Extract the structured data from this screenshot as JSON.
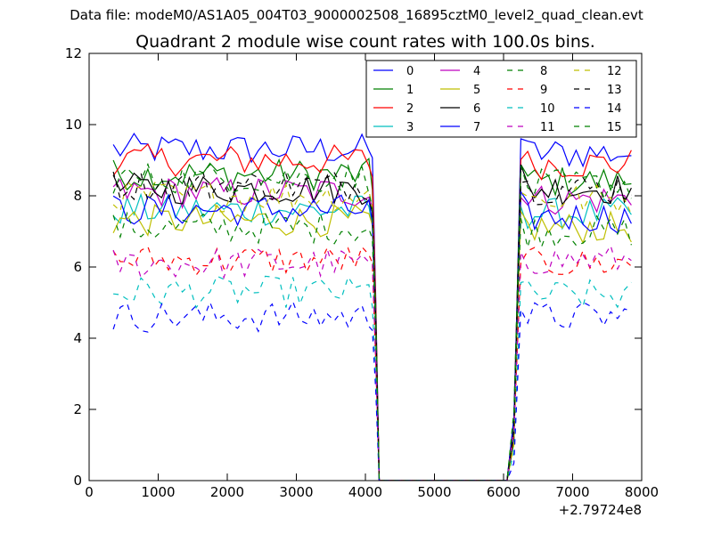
{
  "header": {
    "data_file": "Data file: modeM0/AS1A05_004T03_9000002508_16895cztM0_level2_quad_clean.evt",
    "title": "Quadrant 2 module wise count rates with 100.0s bins."
  },
  "chart_data": {
    "type": "line",
    "title": "Quadrant 2 module wise count rates with 100.0s bins.",
    "subtitle": "Data file: modeM0/AS1A05_004T03_9000002508_16895cztM0_level2_quad_clean.evt",
    "xlabel": "",
    "ylabel": "",
    "x_offset_label": "+2.79724e8",
    "xlim": [
      0,
      8000
    ],
    "ylim": [
      0,
      12
    ],
    "xticks": [
      0,
      1000,
      2000,
      3000,
      4000,
      5000,
      6000,
      7000,
      8000
    ],
    "yticks": [
      0,
      2,
      4,
      6,
      8,
      10,
      12
    ],
    "xtick_labels": [
      "0",
      "1000",
      "2000",
      "3000",
      "4000",
      "5000",
      "6000",
      "7000",
      "8000"
    ],
    "ytick_labels": [
      "0",
      "2",
      "4",
      "6",
      "8",
      "10",
      "12"
    ],
    "grid": false,
    "legend_location": "upper right",
    "legend_columns": 4,
    "segments": [
      {
        "x_start": 350,
        "x_end": 4150,
        "step": 100
      },
      {
        "x_start": 6050,
        "x_end": 7850,
        "step": 100
      }
    ],
    "gap_note": "count rate drops to 0 between about 4150 and 6050",
    "series": [
      {
        "name": "0",
        "color": "#0000ff",
        "style": "solid",
        "level_before": 9.3,
        "level_after": 9.2
      },
      {
        "name": "1",
        "color": "#008000",
        "style": "solid",
        "level_before": 8.6,
        "level_after": 8.4
      },
      {
        "name": "2",
        "color": "#ff0000",
        "style": "solid",
        "level_before": 9.0,
        "level_after": 8.9
      },
      {
        "name": "3",
        "color": "#00bfbf",
        "style": "solid",
        "level_before": 7.6,
        "level_after": 7.5
      },
      {
        "name": "4",
        "color": "#bf00bf",
        "style": "solid",
        "level_before": 8.1,
        "level_after": 7.9
      },
      {
        "name": "5",
        "color": "#bfbf00",
        "style": "solid",
        "level_before": 7.3,
        "level_after": 7.1
      },
      {
        "name": "6",
        "color": "#000000",
        "style": "solid",
        "level_before": 8.2,
        "level_after": 8.2
      },
      {
        "name": "7",
        "color": "#0000ff",
        "style": "solid",
        "level_before": 7.6,
        "level_after": 7.4
      },
      {
        "name": "8",
        "color": "#008000",
        "style": "dashed",
        "level_before": 7.1,
        "level_after": 7.0
      },
      {
        "name": "9",
        "color": "#ff0000",
        "style": "dashed",
        "level_before": 6.2,
        "level_after": 6.1
      },
      {
        "name": "10",
        "color": "#00bfbf",
        "style": "dashed",
        "level_before": 5.3,
        "level_after": 5.2
      },
      {
        "name": "11",
        "color": "#bf00bf",
        "style": "dashed",
        "level_before": 6.1,
        "level_after": 6.2
      },
      {
        "name": "12",
        "color": "#bfbf00",
        "style": "dashed",
        "level_before": 8.0,
        "level_after": 7.9
      },
      {
        "name": "13",
        "color": "#000000",
        "style": "dashed",
        "level_before": 8.3,
        "level_after": 8.2
      },
      {
        "name": "14",
        "color": "#0000ff",
        "style": "dashed",
        "level_before": 4.6,
        "level_after": 4.6
      },
      {
        "name": "15",
        "color": "#008000",
        "style": "dashed",
        "level_before": 8.5,
        "level_after": 8.3
      }
    ]
  }
}
